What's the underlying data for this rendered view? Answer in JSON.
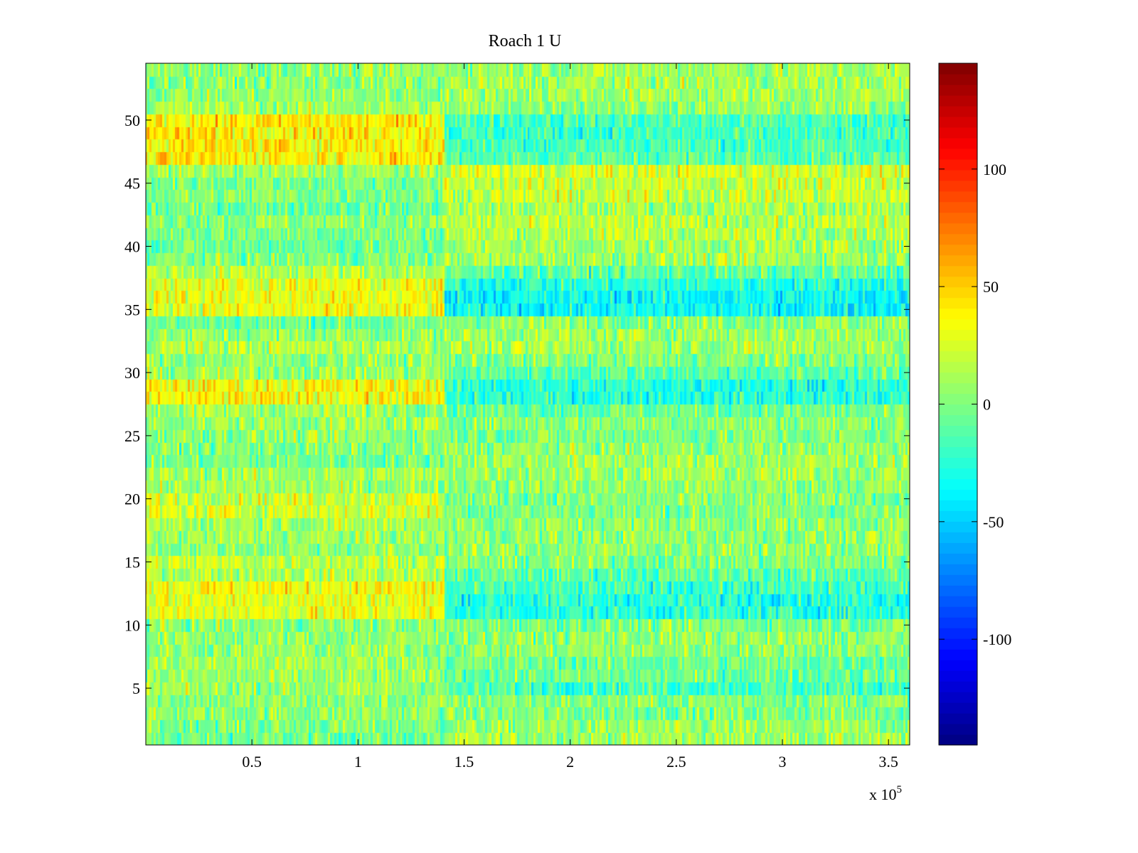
{
  "chart_data": {
    "type": "heatmap",
    "title": "Roach 1 U",
    "xlabel": "",
    "ylabel": "",
    "x_exponent_label": {
      "base": "x 10",
      "exponent": "5"
    },
    "xlim": [
      0,
      3.6
    ],
    "ylim": [
      0.5,
      54.5
    ],
    "x_ticks": [
      0.5,
      1,
      1.5,
      2,
      2.5,
      3,
      3.5
    ],
    "x_tick_labels": [
      "0.5",
      "1",
      "1.5",
      "2",
      "2.5",
      "3",
      "3.5"
    ],
    "y_ticks": [
      5,
      10,
      15,
      20,
      25,
      30,
      35,
      40,
      45,
      50
    ],
    "y_tick_labels": [
      "5",
      "10",
      "15",
      "20",
      "25",
      "30",
      "35",
      "40",
      "45",
      "50"
    ],
    "rows": 54,
    "columns": 360,
    "colormap": "jet",
    "clim": [
      -145,
      145
    ],
    "colorbar_ticks": [
      100,
      50,
      0,
      -50,
      -100
    ],
    "colorbar_tick_labels": [
      "100",
      "50",
      "0",
      "-50",
      "-100"
    ],
    "transition_x": 1.41,
    "row_mean_before_transition": [
      -5,
      0,
      5,
      3,
      8,
      5,
      10,
      6,
      5,
      3,
      30,
      30,
      35,
      15,
      20,
      5,
      8,
      12,
      25,
      25,
      8,
      10,
      -3,
      0,
      5,
      8,
      10,
      35,
      35,
      8,
      5,
      15,
      5,
      -5,
      30,
      30,
      30,
      15,
      0,
      -5,
      0,
      5,
      -5,
      2,
      0,
      8,
      40,
      40,
      42,
      40,
      10,
      5,
      3,
      5
    ],
    "row_mean_after_transition": [
      10,
      5,
      0,
      3,
      -15,
      -5,
      -5,
      5,
      5,
      0,
      -25,
      -25,
      -20,
      -10,
      0,
      5,
      5,
      5,
      0,
      0,
      5,
      10,
      10,
      5,
      0,
      5,
      -5,
      -25,
      -25,
      -10,
      0,
      10,
      10,
      5,
      -35,
      -35,
      -25,
      -10,
      10,
      10,
      15,
      15,
      10,
      20,
      20,
      25,
      -10,
      -15,
      -20,
      -15,
      5,
      10,
      10,
      10
    ],
    "row_noise_std": 14,
    "noise_seed": 12345
  }
}
